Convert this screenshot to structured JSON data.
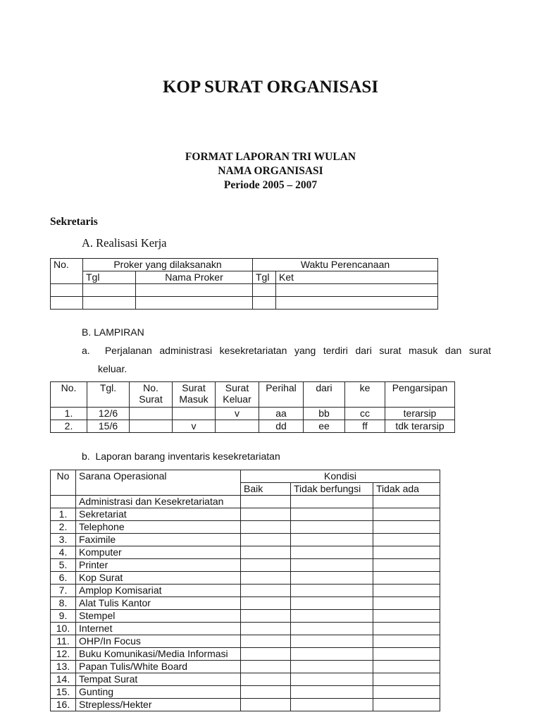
{
  "header": {
    "title": "KOP SURAT ORGANISASI",
    "subtitle_lines": [
      "FORMAT LAPORAN TRI WULAN",
      "NAMA ORGANISASI",
      "Periode 2005 – 2007"
    ]
  },
  "section": "Sekretaris",
  "realisasi": {
    "heading": "A. Realisasi Kerja",
    "headers": {
      "no": "No.",
      "proker": "Proker yang dilaksanakn",
      "waktu": "Waktu Perencanaan",
      "tgl": "Tgl",
      "nama": "Nama Proker",
      "tgl2": "Tgl",
      "ket": "Ket"
    }
  },
  "lampiran": {
    "heading": "B.  LAMPIRAN",
    "a_text": "a.  Perjalanan administrasi kesekretariatan yang terdiri dari surat masuk dan surat",
    "a_text2": "keluar.",
    "surat_table": {
      "headers": [
        "No.",
        "Tgl.",
        "No. Surat",
        "Surat Masuk",
        "Surat Keluar",
        "Perihal",
        "dari",
        "ke",
        "Pengarsipan"
      ],
      "rows": [
        [
          "1.",
          "12/6",
          "",
          "",
          "v",
          "aa",
          "bb",
          "cc",
          "terarsip"
        ],
        [
          "2.",
          "15/6",
          "",
          "v",
          "",
          "dd",
          "ee",
          "ff",
          "tdk terarsip"
        ]
      ]
    },
    "b_text": "b.  Laporan barang inventaris kesekretariatan",
    "inventaris": {
      "headers": {
        "no": "No",
        "sarana": "Sarana Operasional",
        "kondisi": "Kondisi",
        "baik": "Baik",
        "tidak_berfungsi": "Tidak berfungsi",
        "tidak_ada": "Tidak ada"
      },
      "group": "Administrasi dan Kesekretariatan",
      "rows": [
        [
          "1.",
          "Sekretariat"
        ],
        [
          "2.",
          "Telephone"
        ],
        [
          "3.",
          "Faximile"
        ],
        [
          "4.",
          "Komputer"
        ],
        [
          "5.",
          "Printer"
        ],
        [
          "6.",
          "Kop Surat"
        ],
        [
          "7.",
          "Amplop Komisariat"
        ],
        [
          "8.",
          "Alat Tulis Kantor"
        ],
        [
          "9.",
          "Stempel"
        ],
        [
          "10.",
          "Internet"
        ],
        [
          "11.",
          "OHP/In Focus"
        ],
        [
          "12.",
          "Buku Komunikasi/Media Informasi"
        ],
        [
          "13.",
          "Papan Tulis/White Board"
        ],
        [
          "14.",
          "Tempat Surat"
        ],
        [
          "15.",
          "Gunting"
        ],
        [
          "16.",
          "Strepless/Hekter"
        ]
      ]
    }
  }
}
